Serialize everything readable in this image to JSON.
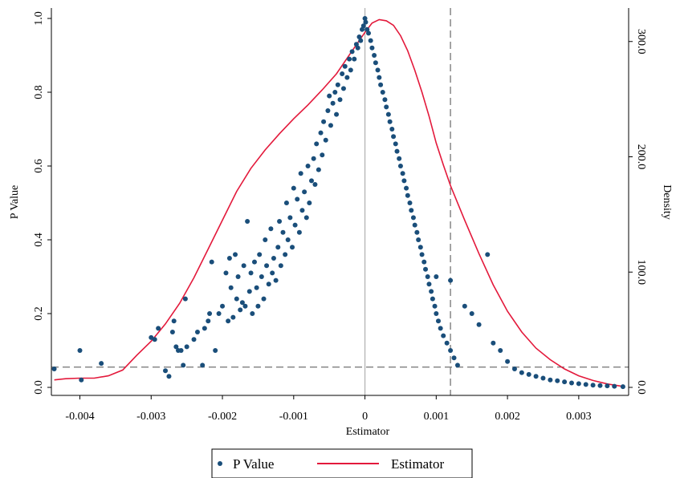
{
  "chart_data": {
    "type": "scatter",
    "title": "",
    "xlabel": "Estimator",
    "ylabel": "P Value",
    "y2label": "Density",
    "xlim": [
      -0.0044,
      0.0037
    ],
    "ylim": [
      0,
      1
    ],
    "y2lim": [
      0,
      320
    ],
    "x_ticks": [
      -0.004,
      -0.003,
      -0.002,
      -0.001,
      0,
      0.001,
      0.002,
      0.003
    ],
    "x_tick_labels": [
      "-0.004",
      "-0.003",
      "-0.002",
      "-0.001",
      "0",
      "0.001",
      "0.002",
      "0.003"
    ],
    "y_ticks": [
      0,
      0.2,
      0.4,
      0.6,
      0.8,
      1
    ],
    "y_tick_labels": [
      "0.0",
      "0.2",
      "0.4",
      "0.6",
      "0.8",
      "1.0"
    ],
    "y2_ticks": [
      0,
      100,
      200,
      300
    ],
    "y2_tick_labels": [
      "0.0",
      "100.0",
      "200.0",
      "300.0"
    ],
    "reference_lines": {
      "vertical_solid_x": 0,
      "vertical_dashed_x": 0.0012,
      "horizontal_dashed_y": 0.055
    },
    "legend": {
      "placement": "bottom-center",
      "entries": [
        {
          "label": "P Value",
          "marker": "dot"
        },
        {
          "label": "Estimator",
          "marker": "line"
        }
      ]
    },
    "colors": {
      "p_value": "#1a4e7a",
      "estimator": "#e3193b",
      "reference": "#7f7f7f"
    },
    "series": [
      {
        "name": "P Value",
        "axis": "left",
        "points": [
          [
            -0.00436,
            0.05
          ],
          [
            -0.004,
            0.1
          ],
          [
            -0.00398,
            0.02
          ],
          [
            -0.0037,
            0.065
          ],
          [
            -0.003,
            0.135
          ],
          [
            -0.00295,
            0.13
          ],
          [
            -0.0029,
            0.16
          ],
          [
            -0.0028,
            0.045
          ],
          [
            -0.00275,
            0.03
          ],
          [
            -0.0027,
            0.15
          ],
          [
            -0.00268,
            0.18
          ],
          [
            -0.00265,
            0.11
          ],
          [
            -0.00262,
            0.1
          ],
          [
            -0.00258,
            0.1
          ],
          [
            -0.00255,
            0.06
          ],
          [
            -0.00252,
            0.24
          ],
          [
            -0.0025,
            0.11
          ],
          [
            -0.0024,
            0.13
          ],
          [
            -0.00235,
            0.15
          ],
          [
            -0.00228,
            0.06
          ],
          [
            -0.00225,
            0.16
          ],
          [
            -0.0022,
            0.18
          ],
          [
            -0.00218,
            0.2
          ],
          [
            -0.00215,
            0.34
          ],
          [
            -0.0021,
            0.1
          ],
          [
            -0.00205,
            0.2
          ],
          [
            -0.002,
            0.22
          ],
          [
            -0.00195,
            0.31
          ],
          [
            -0.00192,
            0.18
          ],
          [
            -0.0019,
            0.35
          ],
          [
            -0.00188,
            0.27
          ],
          [
            -0.00185,
            0.19
          ],
          [
            -0.00182,
            0.36
          ],
          [
            -0.0018,
            0.24
          ],
          [
            -0.00178,
            0.3
          ],
          [
            -0.00175,
            0.21
          ],
          [
            -0.00172,
            0.23
          ],
          [
            -0.0017,
            0.33
          ],
          [
            -0.00168,
            0.22
          ],
          [
            -0.00165,
            0.45
          ],
          [
            -0.00162,
            0.26
          ],
          [
            -0.0016,
            0.31
          ],
          [
            -0.00158,
            0.2
          ],
          [
            -0.00155,
            0.34
          ],
          [
            -0.00152,
            0.27
          ],
          [
            -0.0015,
            0.22
          ],
          [
            -0.00148,
            0.36
          ],
          [
            -0.00145,
            0.3
          ],
          [
            -0.00142,
            0.24
          ],
          [
            -0.0014,
            0.4
          ],
          [
            -0.00138,
            0.33
          ],
          [
            -0.00135,
            0.28
          ],
          [
            -0.00132,
            0.43
          ],
          [
            -0.0013,
            0.31
          ],
          [
            -0.00128,
            0.35
          ],
          [
            -0.00125,
            0.29
          ],
          [
            -0.00122,
            0.38
          ],
          [
            -0.0012,
            0.45
          ],
          [
            -0.00118,
            0.33
          ],
          [
            -0.00115,
            0.42
          ],
          [
            -0.00112,
            0.36
          ],
          [
            -0.0011,
            0.5
          ],
          [
            -0.00108,
            0.4
          ],
          [
            -0.00105,
            0.46
          ],
          [
            -0.00102,
            0.38
          ],
          [
            -0.001,
            0.54
          ],
          [
            -0.00098,
            0.44
          ],
          [
            -0.00095,
            0.51
          ],
          [
            -0.00092,
            0.42
          ],
          [
            -0.0009,
            0.58
          ],
          [
            -0.00088,
            0.48
          ],
          [
            -0.00085,
            0.53
          ],
          [
            -0.00082,
            0.46
          ],
          [
            -0.0008,
            0.6
          ],
          [
            -0.00078,
            0.5
          ],
          [
            -0.00075,
            0.56
          ],
          [
            -0.00072,
            0.62
          ],
          [
            -0.0007,
            0.55
          ],
          [
            -0.00068,
            0.66
          ],
          [
            -0.00065,
            0.59
          ],
          [
            -0.00062,
            0.69
          ],
          [
            -0.0006,
            0.63
          ],
          [
            -0.00058,
            0.72
          ],
          [
            -0.00055,
            0.67
          ],
          [
            -0.00052,
            0.75
          ],
          [
            -0.0005,
            0.79
          ],
          [
            -0.00048,
            0.71
          ],
          [
            -0.00045,
            0.77
          ],
          [
            -0.00042,
            0.8
          ],
          [
            -0.0004,
            0.74
          ],
          [
            -0.00038,
            0.82
          ],
          [
            -0.00035,
            0.78
          ],
          [
            -0.00032,
            0.85
          ],
          [
            -0.0003,
            0.81
          ],
          [
            -0.00028,
            0.87
          ],
          [
            -0.00025,
            0.84
          ],
          [
            -0.00022,
            0.89
          ],
          [
            -0.0002,
            0.86
          ],
          [
            -0.00018,
            0.91
          ],
          [
            -0.00015,
            0.89
          ],
          [
            -0.00012,
            0.93
          ],
          [
            -0.0001,
            0.92
          ],
          [
            -8e-05,
            0.95
          ],
          [
            -6e-05,
            0.94
          ],
          [
            -4e-05,
            0.97
          ],
          [
            -2e-05,
            0.98
          ],
          [
            0.0,
            1.0
          ],
          [
            1e-05,
            0.99
          ],
          [
            3e-05,
            0.97
          ],
          [
            5e-05,
            0.96
          ],
          [
            8e-05,
            0.94
          ],
          [
            0.0001,
            0.92
          ],
          [
            0.00013,
            0.9
          ],
          [
            0.00015,
            0.88
          ],
          [
            0.00018,
            0.86
          ],
          [
            0.0002,
            0.84
          ],
          [
            0.00022,
            0.82
          ],
          [
            0.00025,
            0.8
          ],
          [
            0.00028,
            0.78
          ],
          [
            0.0003,
            0.76
          ],
          [
            0.00033,
            0.74
          ],
          [
            0.00035,
            0.72
          ],
          [
            0.00038,
            0.7
          ],
          [
            0.0004,
            0.68
          ],
          [
            0.00043,
            0.66
          ],
          [
            0.00045,
            0.64
          ],
          [
            0.00048,
            0.62
          ],
          [
            0.0005,
            0.6
          ],
          [
            0.00053,
            0.58
          ],
          [
            0.00055,
            0.56
          ],
          [
            0.00058,
            0.54
          ],
          [
            0.0006,
            0.52
          ],
          [
            0.00063,
            0.5
          ],
          [
            0.00065,
            0.48
          ],
          [
            0.00068,
            0.46
          ],
          [
            0.0007,
            0.44
          ],
          [
            0.00073,
            0.42
          ],
          [
            0.00075,
            0.4
          ],
          [
            0.00078,
            0.38
          ],
          [
            0.0008,
            0.36
          ],
          [
            0.00083,
            0.34
          ],
          [
            0.00085,
            0.32
          ],
          [
            0.00088,
            0.3
          ],
          [
            0.0009,
            0.28
          ],
          [
            0.00093,
            0.26
          ],
          [
            0.00095,
            0.24
          ],
          [
            0.00098,
            0.22
          ],
          [
            0.001,
            0.2
          ],
          [
            0.00103,
            0.18
          ],
          [
            0.00106,
            0.16
          ],
          [
            0.0011,
            0.14
          ],
          [
            0.00115,
            0.12
          ],
          [
            0.0012,
            0.1
          ],
          [
            0.00125,
            0.08
          ],
          [
            0.0013,
            0.06
          ],
          [
            0.001,
            0.3
          ],
          [
            0.0012,
            0.29
          ],
          [
            0.0014,
            0.22
          ],
          [
            0.0015,
            0.2
          ],
          [
            0.0016,
            0.17
          ],
          [
            0.00172,
            0.36
          ],
          [
            0.0018,
            0.12
          ],
          [
            0.0019,
            0.1
          ],
          [
            0.002,
            0.07
          ],
          [
            0.0021,
            0.05
          ],
          [
            0.0022,
            0.04
          ],
          [
            0.0023,
            0.035
          ],
          [
            0.0024,
            0.03
          ],
          [
            0.0025,
            0.025
          ],
          [
            0.0026,
            0.02
          ],
          [
            0.0027,
            0.018
          ],
          [
            0.0028,
            0.015
          ],
          [
            0.0029,
            0.012
          ],
          [
            0.003,
            0.01
          ],
          [
            0.0031,
            0.008
          ],
          [
            0.0032,
            0.006
          ],
          [
            0.0033,
            0.005
          ],
          [
            0.0034,
            0.004
          ],
          [
            0.0035,
            0.003
          ],
          [
            0.00362,
            0.002
          ]
        ]
      },
      {
        "name": "Estimator",
        "axis": "right",
        "type": "line",
        "points": [
          [
            -0.00436,
            6.5
          ],
          [
            -0.0042,
            7.5
          ],
          [
            -0.004,
            8
          ],
          [
            -0.0038,
            8
          ],
          [
            -0.0036,
            10
          ],
          [
            -0.0034,
            15
          ],
          [
            -0.0032,
            28
          ],
          [
            -0.003,
            40
          ],
          [
            -0.0028,
            55
          ],
          [
            -0.0026,
            73
          ],
          [
            -0.0024,
            95
          ],
          [
            -0.0022,
            120
          ],
          [
            -0.002,
            145
          ],
          [
            -0.0018,
            170
          ],
          [
            -0.0016,
            190
          ],
          [
            -0.0014,
            206
          ],
          [
            -0.0012,
            220
          ],
          [
            -0.001,
            233
          ],
          [
            -0.0008,
            245
          ],
          [
            -0.0006,
            258
          ],
          [
            -0.0004,
            272
          ],
          [
            -0.0002,
            290
          ],
          [
            0.0,
            308
          ],
          [
            0.0001,
            316
          ],
          [
            0.0002,
            319
          ],
          [
            0.0003,
            318
          ],
          [
            0.0004,
            314
          ],
          [
            0.0005,
            305
          ],
          [
            0.0006,
            292
          ],
          [
            0.0007,
            275
          ],
          [
            0.0008,
            256
          ],
          [
            0.0009,
            235
          ],
          [
            0.001,
            212
          ],
          [
            0.0011,
            193
          ],
          [
            0.0012,
            175
          ],
          [
            0.0014,
            145
          ],
          [
            0.0016,
            116
          ],
          [
            0.0018,
            89
          ],
          [
            0.002,
            66
          ],
          [
            0.0022,
            48
          ],
          [
            0.0024,
            34
          ],
          [
            0.0026,
            24
          ],
          [
            0.0028,
            16
          ],
          [
            0.003,
            10
          ],
          [
            0.0032,
            6
          ],
          [
            0.0034,
            3
          ],
          [
            0.0036,
            1
          ]
        ]
      }
    ]
  }
}
